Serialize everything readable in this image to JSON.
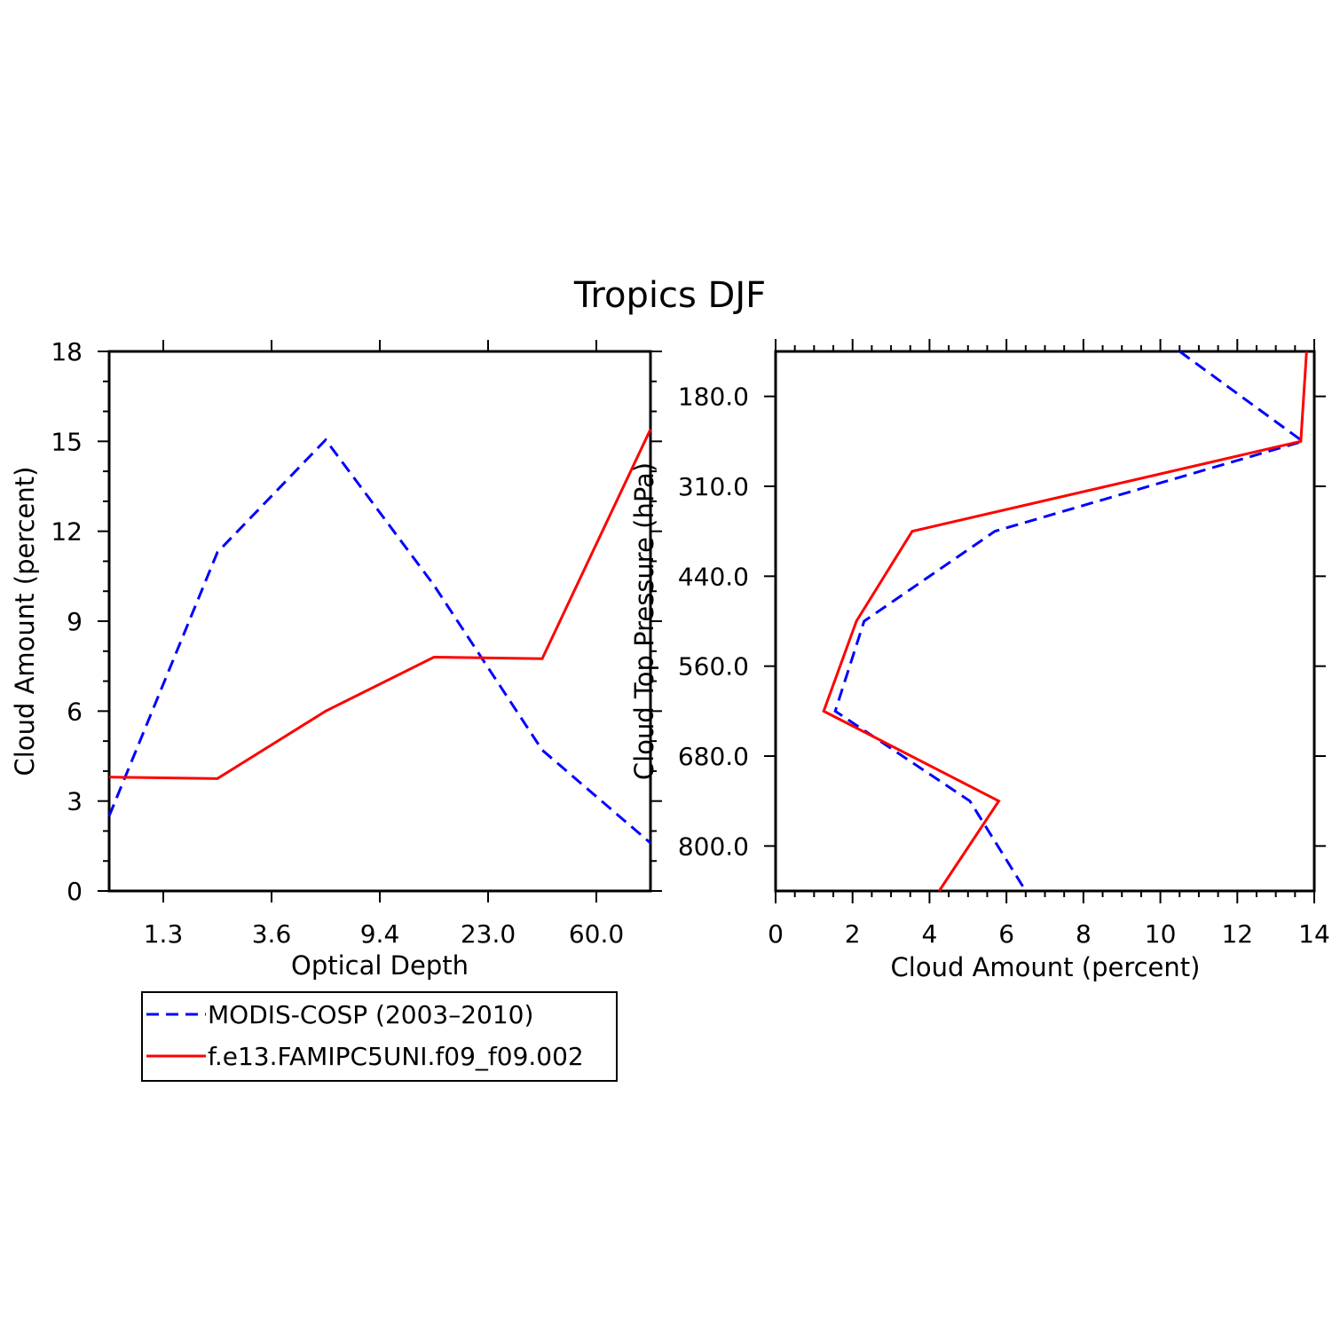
{
  "title": "Tropics DJF",
  "colors": {
    "modis": "#0000ff",
    "model": "#ff0000",
    "axis": "#000000"
  },
  "legend": {
    "items": [
      {
        "label": "MODIS-COSP (2003–2010)",
        "color": "#0000ff",
        "dash": true
      },
      {
        "label": "f.e13.FAMIPC5UNI.f09_f09.002",
        "color": "#ff0000",
        "dash": false
      }
    ]
  },
  "chart_data": [
    {
      "type": "line",
      "xlabel": "Optical Depth",
      "ylabel": "Cloud Amount (percent)",
      "x_tick_labels": [
        "1.3",
        "3.6",
        "9.4",
        "23.0",
        "60.0"
      ],
      "y_ticks": [
        0,
        3,
        6,
        9,
        12,
        15,
        18
      ],
      "ylim": [
        0,
        18
      ],
      "series": [
        {
          "name": "MODIS-COSP (2003–2010)",
          "values": [
            2.5,
            11.3,
            15.05,
            10.2,
            4.7,
            1.6
          ]
        },
        {
          "name": "f.e13.FAMIPC5UNI.f09_f09.002",
          "values": [
            3.8,
            3.75,
            6.0,
            7.8,
            7.75,
            15.4
          ]
        }
      ]
    },
    {
      "type": "line",
      "xlabel": "Cloud Amount (percent)",
      "ylabel": "Cloud Top Pressure (hPa)",
      "x_ticks": [
        0,
        2,
        4,
        6,
        8,
        10,
        12,
        14
      ],
      "xlim": [
        0,
        14
      ],
      "y_tick_labels": [
        "180.0",
        "310.0",
        "440.0",
        "560.0",
        "680.0",
        "800.0"
      ],
      "series": [
        {
          "name": "MODIS-COSP (2003–2010)",
          "values": [
            10.5,
            13.7,
            5.7,
            2.3,
            1.55,
            5.05,
            6.5
          ]
        },
        {
          "name": "f.e13.FAMIPC5UNI.f09_f09.002",
          "values": [
            13.8,
            13.65,
            3.55,
            2.1,
            1.25,
            5.8,
            4.25
          ]
        }
      ]
    }
  ]
}
